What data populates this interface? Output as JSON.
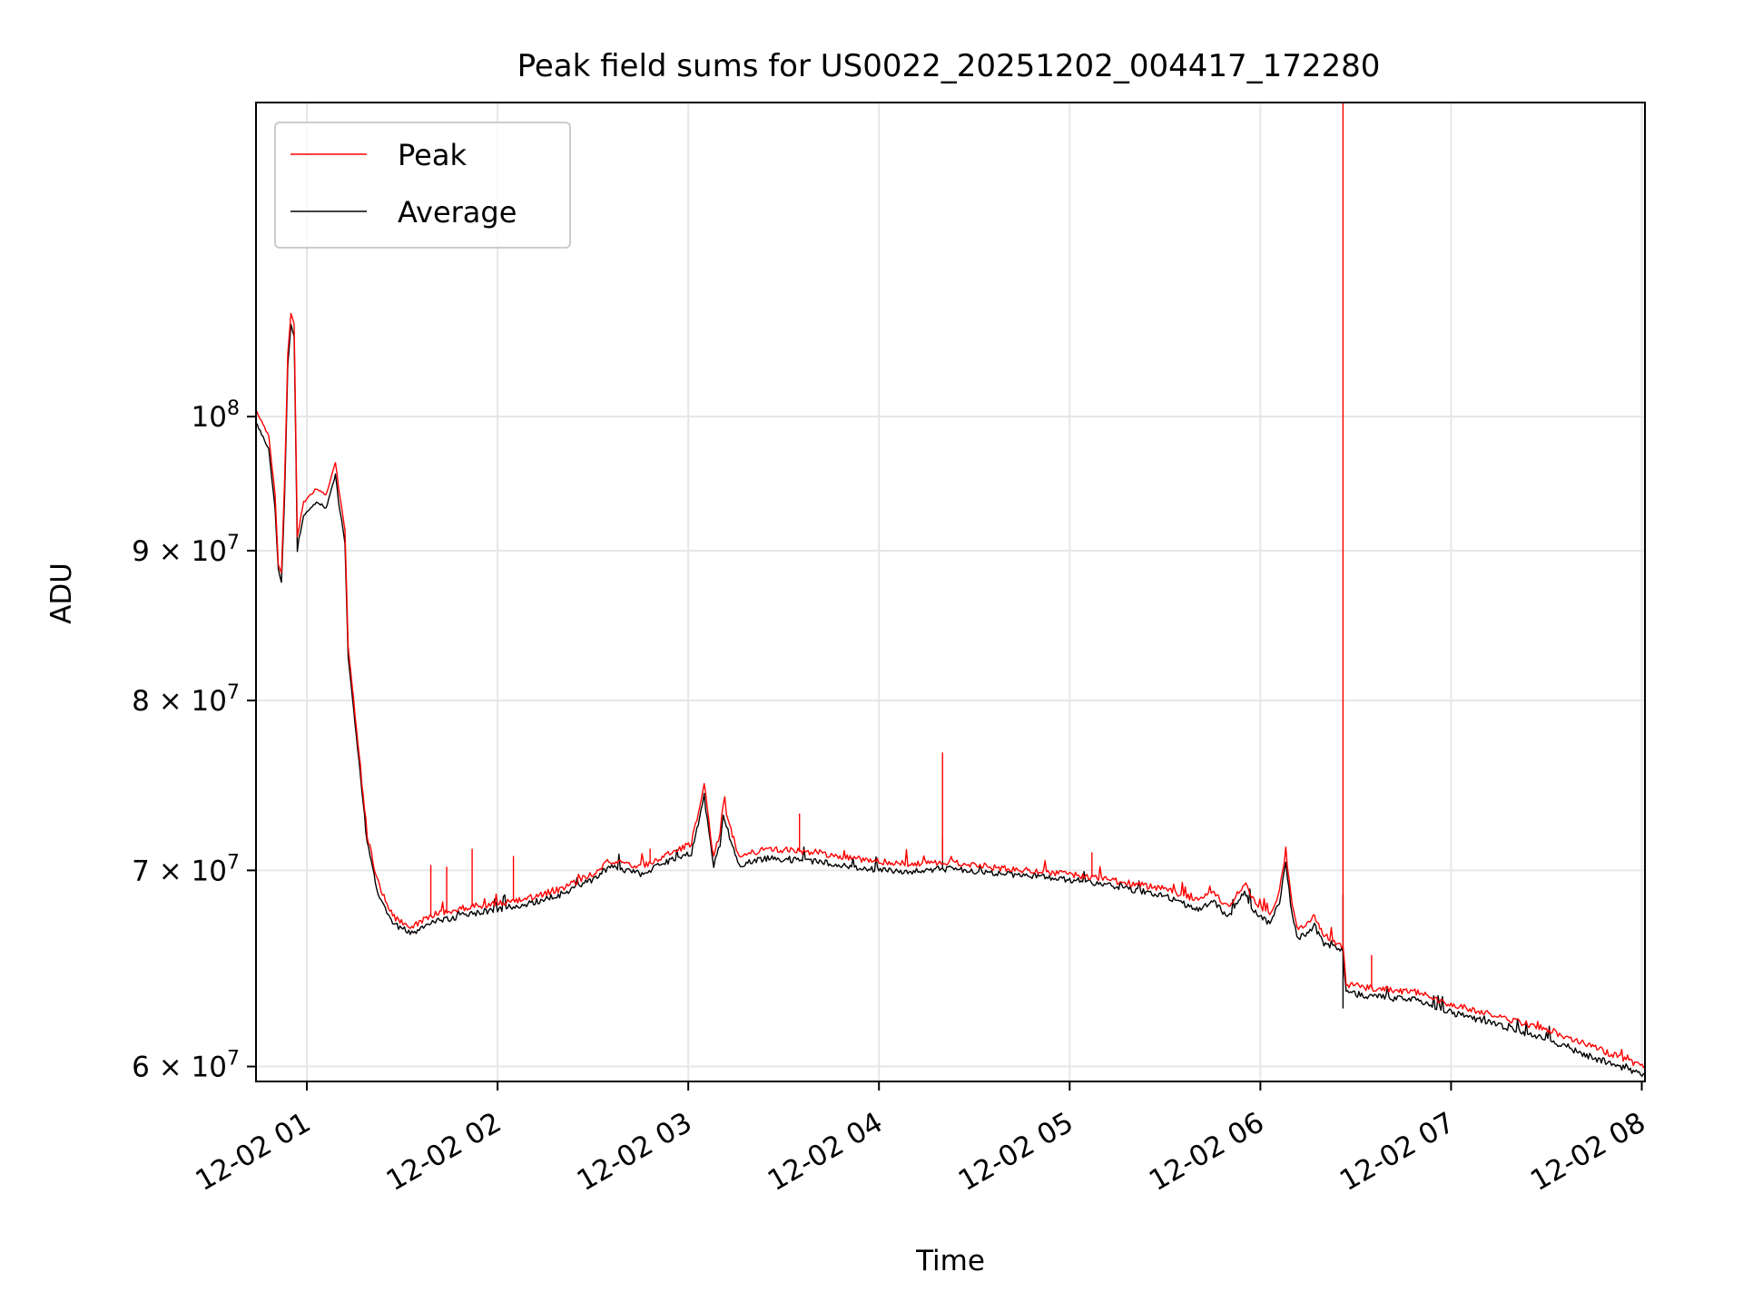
{
  "chart_data": {
    "type": "line",
    "title": "Peak field sums for US0022_20251202_004417_172280",
    "xlabel": "Time",
    "ylabel": "ADU",
    "yscale": "log",
    "xlim": [
      "2025-12-02 00:44",
      "2025-12-02 08:01"
    ],
    "ylim": [
      59300000,
      128000000
    ],
    "grid": true,
    "legend": "top-left",
    "x_ticks": [
      {
        "value": "2025-12-02 01:00",
        "label": "12-02 01"
      },
      {
        "value": "2025-12-02 02:00",
        "label": "12-02 02"
      },
      {
        "value": "2025-12-02 03:00",
        "label": "12-02 03"
      },
      {
        "value": "2025-12-02 04:00",
        "label": "12-02 04"
      },
      {
        "value": "2025-12-02 05:00",
        "label": "12-02 05"
      },
      {
        "value": "2025-12-02 06:00",
        "label": "12-02 06"
      },
      {
        "value": "2025-12-02 07:00",
        "label": "12-02 07"
      },
      {
        "value": "2025-12-02 08:00",
        "label": "12-02 08"
      }
    ],
    "y_ticks": [
      {
        "value": 60000000,
        "mantissa": "6",
        "base": "10",
        "exp": "7"
      },
      {
        "value": 70000000,
        "mantissa": "7",
        "base": "10",
        "exp": "7"
      },
      {
        "value": 80000000,
        "mantissa": "8",
        "base": "10",
        "exp": "7"
      },
      {
        "value": 90000000,
        "mantissa": "9",
        "base": "10",
        "exp": "7"
      },
      {
        "value": 100000000,
        "mantissa": "",
        "base": "10",
        "exp": "8"
      }
    ],
    "series": [
      {
        "name": "Peak",
        "color": "#ff0000",
        "points": [
          [
            "2025-12-02 00:44",
            100500000
          ],
          [
            "2025-12-02 00:48",
            98500000
          ],
          [
            "2025-12-02 00:50",
            94000000
          ],
          [
            "2025-12-02 00:51",
            89000000
          ],
          [
            "2025-12-02 00:52",
            88500000
          ],
          [
            "2025-12-02 00:53",
            95000000
          ],
          [
            "2025-12-02 00:54",
            105000000
          ],
          [
            "2025-12-02 00:55",
            108500000
          ],
          [
            "2025-12-02 00:56",
            107500000
          ],
          [
            "2025-12-02 00:57",
            91000000
          ],
          [
            "2025-12-02 00:59",
            93500000
          ],
          [
            "2025-12-02 01:03",
            94500000
          ],
          [
            "2025-12-02 01:06",
            94000000
          ],
          [
            "2025-12-02 01:09",
            96500000
          ],
          [
            "2025-12-02 01:10",
            94500000
          ],
          [
            "2025-12-02 01:12",
            91500000
          ],
          [
            "2025-12-02 01:13",
            83500000
          ],
          [
            "2025-12-02 01:16",
            77500000
          ],
          [
            "2025-12-02 01:19",
            72000000
          ],
          [
            "2025-12-02 01:22",
            69500000
          ],
          [
            "2025-12-02 01:27",
            67500000
          ],
          [
            "2025-12-02 01:33",
            67000000
          ],
          [
            "2025-12-02 01:40",
            67600000
          ],
          [
            "2025-12-02 01:50",
            68000000
          ],
          [
            "2025-12-02 02:00",
            68200000
          ],
          [
            "2025-12-02 02:10",
            68500000
          ],
          [
            "2025-12-02 02:20",
            69000000
          ],
          [
            "2025-12-02 02:30",
            69800000
          ],
          [
            "2025-12-02 02:35",
            70500000
          ],
          [
            "2025-12-02 02:45",
            70200000
          ],
          [
            "2025-12-02 02:55",
            71000000
          ],
          [
            "2025-12-02 03:01",
            71500000
          ],
          [
            "2025-12-02 03:04",
            74000000
          ],
          [
            "2025-12-02 03:05",
            75000000
          ],
          [
            "2025-12-02 03:07",
            72000000
          ],
          [
            "2025-12-02 03:08",
            70800000
          ],
          [
            "2025-12-02 03:10",
            72000000
          ],
          [
            "2025-12-02 03:11",
            73800000
          ],
          [
            "2025-12-02 03:13",
            72500000
          ],
          [
            "2025-12-02 03:16",
            70800000
          ],
          [
            "2025-12-02 03:25",
            71200000
          ],
          [
            "2025-12-02 03:40",
            71000000
          ],
          [
            "2025-12-02 03:55",
            70600000
          ],
          [
            "2025-12-02 04:10",
            70300000
          ],
          [
            "2025-12-02 04:20",
            70500000
          ],
          [
            "2025-12-02 04:40",
            70100000
          ],
          [
            "2025-12-02 05:00",
            69800000
          ],
          [
            "2025-12-02 05:15",
            69400000
          ],
          [
            "2025-12-02 05:30",
            69000000
          ],
          [
            "2025-12-02 05:40",
            68400000
          ],
          [
            "2025-12-02 05:45",
            68800000
          ],
          [
            "2025-12-02 05:50",
            68000000
          ],
          [
            "2025-12-02 05:55",
            69300000
          ],
          [
            "2025-12-02 05:58",
            68300000
          ],
          [
            "2025-12-02 06:03",
            67600000
          ],
          [
            "2025-12-02 06:06",
            68800000
          ],
          [
            "2025-12-02 06:08",
            71000000
          ],
          [
            "2025-12-02 06:10",
            68000000
          ],
          [
            "2025-12-02 06:12",
            66800000
          ],
          [
            "2025-12-02 06:17",
            67500000
          ],
          [
            "2025-12-02 06:20",
            66500000
          ],
          [
            "2025-12-02 06:26",
            66000000
          ],
          [
            "2025-12-02 06:27",
            64000000
          ],
          [
            "2025-12-02 06:35",
            63800000
          ],
          [
            "2025-12-02 06:50",
            63600000
          ],
          [
            "2025-12-02 07:00",
            63000000
          ],
          [
            "2025-12-02 07:15",
            62400000
          ],
          [
            "2025-12-02 07:30",
            61800000
          ],
          [
            "2025-12-02 07:45",
            60900000
          ],
          [
            "2025-12-02 08:01",
            60000000
          ]
        ],
        "spikes": [
          [
            "2025-12-02 01:39",
            70300000
          ],
          [
            "2025-12-02 01:44",
            70200000
          ],
          [
            "2025-12-02 01:52",
            71200000
          ],
          [
            "2025-12-02 02:05",
            70800000
          ],
          [
            "2025-12-02 02:48",
            71200000
          ],
          [
            "2025-12-02 03:35",
            73200000
          ],
          [
            "2025-12-02 04:20",
            76800000
          ],
          [
            "2025-12-02 05:07",
            71000000
          ],
          [
            "2025-12-02 06:26",
            128000000
          ],
          [
            "2025-12-02 06:35",
            65500000
          ]
        ]
      },
      {
        "name": "Average",
        "color": "#000000",
        "points": [
          [
            "2025-12-02 00:44",
            99500000
          ],
          [
            "2025-12-02 00:48",
            97500000
          ],
          [
            "2025-12-02 00:50",
            93000000
          ],
          [
            "2025-12-02 00:51",
            88500000
          ],
          [
            "2025-12-02 00:52",
            87800000
          ],
          [
            "2025-12-02 00:53",
            94000000
          ],
          [
            "2025-12-02 00:54",
            104000000
          ],
          [
            "2025-12-02 00:55",
            107500000
          ],
          [
            "2025-12-02 00:56",
            106500000
          ],
          [
            "2025-12-02 00:57",
            90000000
          ],
          [
            "2025-12-02 00:59",
            92500000
          ],
          [
            "2025-12-02 01:03",
            93500000
          ],
          [
            "2025-12-02 01:06",
            93000000
          ],
          [
            "2025-12-02 01:09",
            95500000
          ],
          [
            "2025-12-02 01:10",
            93500000
          ],
          [
            "2025-12-02 01:12",
            90500000
          ],
          [
            "2025-12-02 01:13",
            82800000
          ],
          [
            "2025-12-02 01:16",
            77000000
          ],
          [
            "2025-12-02 01:19",
            71500000
          ],
          [
            "2025-12-02 01:22",
            69000000
          ],
          [
            "2025-12-02 01:27",
            67100000
          ],
          [
            "2025-12-02 01:33",
            66600000
          ],
          [
            "2025-12-02 01:40",
            67200000
          ],
          [
            "2025-12-02 01:50",
            67600000
          ],
          [
            "2025-12-02 02:00",
            67900000
          ],
          [
            "2025-12-02 02:10",
            68200000
          ],
          [
            "2025-12-02 02:20",
            68700000
          ],
          [
            "2025-12-02 02:30",
            69500000
          ],
          [
            "2025-12-02 02:35",
            70200000
          ],
          [
            "2025-12-02 02:45",
            69800000
          ],
          [
            "2025-12-02 02:55",
            70600000
          ],
          [
            "2025-12-02 03:01",
            71000000
          ],
          [
            "2025-12-02 03:04",
            73300000
          ],
          [
            "2025-12-02 03:05",
            74200000
          ],
          [
            "2025-12-02 03:07",
            71400000
          ],
          [
            "2025-12-02 03:08",
            70300000
          ],
          [
            "2025-12-02 03:10",
            71400000
          ],
          [
            "2025-12-02 03:11",
            73000000
          ],
          [
            "2025-12-02 03:13",
            71900000
          ],
          [
            "2025-12-02 03:16",
            70300000
          ],
          [
            "2025-12-02 03:25",
            70700000
          ],
          [
            "2025-12-02 03:40",
            70500000
          ],
          [
            "2025-12-02 03:55",
            70100000
          ],
          [
            "2025-12-02 04:10",
            69900000
          ],
          [
            "2025-12-02 04:20",
            70100000
          ],
          [
            "2025-12-02 04:40",
            69800000
          ],
          [
            "2025-12-02 05:00",
            69500000
          ],
          [
            "2025-12-02 05:15",
            69100000
          ],
          [
            "2025-12-02 05:30",
            68600000
          ],
          [
            "2025-12-02 05:40",
            67900000
          ],
          [
            "2025-12-02 05:45",
            68300000
          ],
          [
            "2025-12-02 05:50",
            67500000
          ],
          [
            "2025-12-02 05:55",
            68800000
          ],
          [
            "2025-12-02 05:58",
            67800000
          ],
          [
            "2025-12-02 06:03",
            67100000
          ],
          [
            "2025-12-02 06:06",
            68300000
          ],
          [
            "2025-12-02 06:08",
            70500000
          ],
          [
            "2025-12-02 06:10",
            67500000
          ],
          [
            "2025-12-02 06:12",
            66300000
          ],
          [
            "2025-12-02 06:17",
            67000000
          ],
          [
            "2025-12-02 06:20",
            66100000
          ],
          [
            "2025-12-02 06:26",
            65700000
          ],
          [
            "2025-12-02 06:27",
            63600000
          ],
          [
            "2025-12-02 06:35",
            63400000
          ],
          [
            "2025-12-02 06:50",
            63200000
          ],
          [
            "2025-12-02 07:00",
            62600000
          ],
          [
            "2025-12-02 07:15",
            62000000
          ],
          [
            "2025-12-02 07:30",
            61300000
          ],
          [
            "2025-12-02 07:45",
            60400000
          ],
          [
            "2025-12-02 08:01",
            59600000
          ]
        ],
        "spikes": [
          [
            "2025-12-02 04:20",
            71800000
          ],
          [
            "2025-12-02 06:26",
            68700000
          ]
        ],
        "dips": [
          [
            "2025-12-02 06:26",
            62800000
          ]
        ]
      }
    ]
  }
}
